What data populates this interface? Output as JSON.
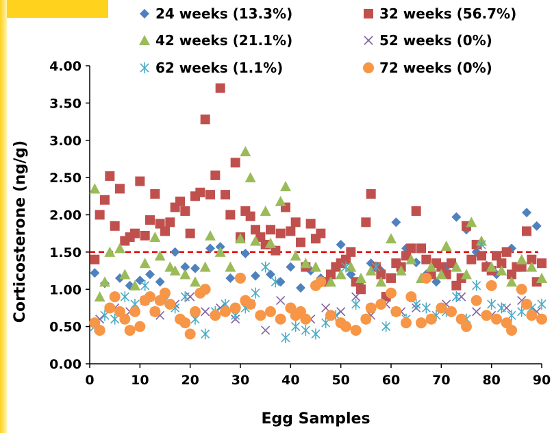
{
  "chart_data": {
    "type": "scatter",
    "xlabel": "Egg Samples",
    "ylabel": "Corticosterone (ng/g)",
    "xlim": [
      0,
      90
    ],
    "ylim": [
      0,
      4
    ],
    "x_ticks": [
      "0",
      "10",
      "20",
      "30",
      "40",
      "50",
      "60",
      "70",
      "80",
      "90"
    ],
    "y_ticks": [
      "0.00",
      "0.50",
      "1.00",
      "1.50",
      "2.00",
      "2.50",
      "3.00",
      "3.50",
      "4.00"
    ],
    "grid": false,
    "legend_position": "top",
    "threshold_line": {
      "y": 1.5,
      "style": "dashed",
      "color": "#e00000"
    },
    "series": [
      {
        "name": "24 weeks (13.3%)",
        "marker": "diamond",
        "color": "#4f81bd",
        "x": [
          1,
          3,
          6,
          8,
          10,
          12,
          14,
          17,
          19,
          21,
          24,
          26,
          28,
          31,
          33,
          36,
          38,
          40,
          42,
          44,
          46,
          50,
          52,
          54,
          56,
          58,
          61,
          63,
          65,
          67,
          69,
          71,
          73,
          75,
          77,
          79,
          81,
          84,
          87,
          89
        ],
        "y": [
          1.22,
          1.08,
          1.15,
          1.05,
          1.12,
          1.2,
          1.1,
          1.5,
          1.3,
          1.28,
          1.55,
          1.57,
          1.15,
          1.48,
          1.18,
          1.2,
          1.1,
          1.3,
          1.02,
          1.25,
          1.15,
          1.6,
          1.2,
          1.1,
          1.35,
          1.25,
          1.9,
          1.55,
          1.36,
          1.2,
          1.1,
          1.3,
          1.97,
          1.8,
          1.5,
          1.32,
          1.2,
          1.55,
          2.03,
          1.85
        ]
      },
      {
        "name": "32 weeks (56.7%)",
        "marker": "square",
        "color": "#c0504d",
        "x": [
          1,
          2,
          3,
          4,
          5,
          6,
          7,
          8,
          9,
          10,
          11,
          12,
          13,
          14,
          15,
          16,
          17,
          18,
          19,
          20,
          21,
          22,
          23,
          24,
          25,
          26,
          27,
          28,
          29,
          30,
          31,
          32,
          33,
          34,
          35,
          36,
          37,
          38,
          39,
          40,
          41,
          42,
          43,
          44,
          45,
          46,
          47,
          48,
          49,
          50,
          51,
          52,
          53,
          54,
          55,
          56,
          57,
          58,
          59,
          60,
          61,
          62,
          63,
          64,
          65,
          66,
          67,
          68,
          69,
          70,
          71,
          72,
          73,
          74,
          75,
          76,
          77,
          78,
          79,
          80,
          81,
          82,
          83,
          84,
          85,
          86,
          87,
          88,
          89,
          90
        ],
        "y": [
          1.4,
          2.0,
          2.2,
          2.52,
          1.85,
          2.35,
          1.65,
          1.7,
          1.75,
          2.45,
          1.72,
          1.93,
          2.28,
          1.88,
          1.78,
          1.9,
          2.1,
          2.18,
          2.05,
          1.75,
          2.25,
          2.3,
          3.28,
          2.27,
          2.53,
          3.7,
          2.27,
          2.0,
          2.7,
          1.7,
          2.05,
          1.98,
          1.8,
          1.7,
          1.6,
          1.8,
          1.52,
          1.75,
          2.1,
          1.78,
          1.9,
          1.63,
          1.3,
          1.88,
          1.68,
          1.75,
          1.1,
          1.2,
          1.3,
          1.35,
          1.4,
          1.5,
          1.1,
          1.0,
          1.9,
          2.28,
          1.3,
          1.2,
          0.9,
          1.15,
          1.35,
          1.3,
          1.45,
          1.55,
          2.05,
          1.55,
          1.4,
          1.2,
          1.35,
          1.3,
          1.2,
          1.35,
          1.05,
          1.15,
          1.85,
          1.4,
          1.6,
          1.45,
          1.3,
          1.25,
          1.45,
          1.35,
          1.5,
          1.2,
          1.3,
          1.3,
          1.78,
          1.4,
          1.1,
          1.35
        ]
      },
      {
        "name": "42 weeks (21.1%)",
        "marker": "triangle",
        "color": "#9bbb59",
        "x": [
          1,
          2,
          3,
          4,
          6,
          7,
          9,
          11,
          13,
          14,
          16,
          17,
          19,
          21,
          23,
          24,
          26,
          28,
          30,
          31,
          32,
          33,
          35,
          36,
          38,
          39,
          41,
          43,
          45,
          48,
          50,
          52,
          54,
          56,
          58,
          60,
          62,
          64,
          66,
          68,
          70,
          71,
          73,
          75,
          76,
          78,
          80,
          82,
          84,
          86,
          88,
          90
        ],
        "y": [
          2.35,
          0.9,
          1.1,
          1.5,
          1.55,
          1.2,
          1.05,
          1.35,
          1.7,
          1.45,
          1.3,
          1.25,
          1.2,
          1.1,
          1.3,
          1.72,
          1.5,
          1.3,
          1.68,
          2.85,
          2.5,
          1.65,
          2.05,
          1.62,
          2.18,
          2.38,
          1.45,
          1.35,
          1.3,
          1.1,
          1.2,
          1.3,
          1.15,
          1.25,
          1.1,
          1.68,
          1.25,
          1.4,
          1.15,
          1.3,
          1.2,
          1.58,
          1.3,
          1.2,
          1.9,
          1.65,
          1.3,
          1.25,
          1.1,
          1.4,
          1.3,
          1.15
        ]
      },
      {
        "name": "52 weeks (0%)",
        "marker": "x",
        "color": "#8064a2",
        "x": [
          2,
          5,
          8,
          11,
          14,
          17,
          20,
          23,
          26,
          29,
          32,
          35,
          38,
          41,
          44,
          47,
          50,
          53,
          56,
          59,
          62,
          65,
          68,
          71,
          74,
          77,
          80,
          83,
          86,
          89
        ],
        "y": [
          0.6,
          0.75,
          0.7,
          0.85,
          0.65,
          0.8,
          0.9,
          0.7,
          0.75,
          0.6,
          0.8,
          0.45,
          0.85,
          0.7,
          0.6,
          0.75,
          0.7,
          0.9,
          0.65,
          0.8,
          0.7,
          0.75,
          0.6,
          0.8,
          0.9,
          0.7,
          0.65,
          0.75,
          0.85,
          0.7
        ]
      },
      {
        "name": "62 weeks (1.1%)",
        "marker": "star",
        "color": "#4bacc6",
        "x": [
          1,
          3,
          5,
          7,
          9,
          11,
          13,
          15,
          17,
          19,
          21,
          23,
          25,
          27,
          29,
          31,
          33,
          35,
          37,
          39,
          41,
          43,
          45,
          47,
          49,
          51,
          53,
          55,
          57,
          59,
          61,
          63,
          65,
          67,
          69,
          71,
          73,
          75,
          77,
          78,
          80,
          82,
          84,
          86,
          88,
          90
        ],
        "y": [
          0.5,
          0.65,
          0.6,
          0.9,
          0.8,
          1.05,
          0.7,
          0.85,
          0.75,
          0.9,
          0.6,
          0.4,
          0.7,
          0.8,
          0.65,
          0.75,
          0.95,
          1.3,
          1.1,
          0.35,
          0.5,
          0.45,
          0.4,
          0.55,
          0.65,
          1.3,
          0.8,
          0.6,
          1.3,
          0.5,
          0.7,
          0.6,
          0.8,
          0.75,
          0.65,
          0.7,
          0.9,
          0.6,
          1.05,
          1.6,
          0.8,
          0.75,
          0.65,
          0.7,
          0.75,
          0.8
        ]
      },
      {
        "name": "72 weeks (0%)",
        "marker": "circle",
        "color": "#f79646",
        "x": [
          1,
          2,
          4,
          5,
          6,
          7,
          8,
          9,
          10,
          11,
          12,
          13,
          14,
          15,
          16,
          18,
          19,
          20,
          21,
          22,
          23,
          25,
          27,
          29,
          30,
          31,
          32,
          34,
          36,
          38,
          40,
          41,
          42,
          43,
          45,
          46,
          48,
          50,
          51,
          53,
          55,
          56,
          58,
          60,
          61,
          63,
          64,
          66,
          67,
          68,
          70,
          72,
          74,
          75,
          77,
          79,
          80,
          81,
          83,
          84,
          86,
          87,
          88,
          90
        ],
        "y": [
          0.55,
          0.45,
          0.75,
          0.9,
          0.7,
          0.6,
          0.45,
          0.7,
          0.5,
          0.85,
          0.9,
          0.7,
          0.85,
          0.95,
          0.8,
          0.6,
          0.55,
          0.4,
          0.7,
          0.95,
          1.0,
          0.65,
          0.7,
          0.75,
          1.15,
          0.85,
          0.8,
          0.65,
          0.7,
          0.6,
          0.75,
          0.65,
          0.7,
          0.6,
          1.05,
          1.1,
          0.65,
          0.55,
          0.5,
          0.45,
          0.6,
          0.75,
          0.8,
          0.95,
          0.7,
          0.55,
          0.9,
          0.55,
          1.15,
          0.6,
          0.75,
          0.7,
          0.6,
          0.5,
          0.85,
          0.65,
          1.05,
          0.6,
          0.55,
          0.45,
          1.0,
          0.8,
          0.65,
          0.6
        ]
      }
    ]
  }
}
